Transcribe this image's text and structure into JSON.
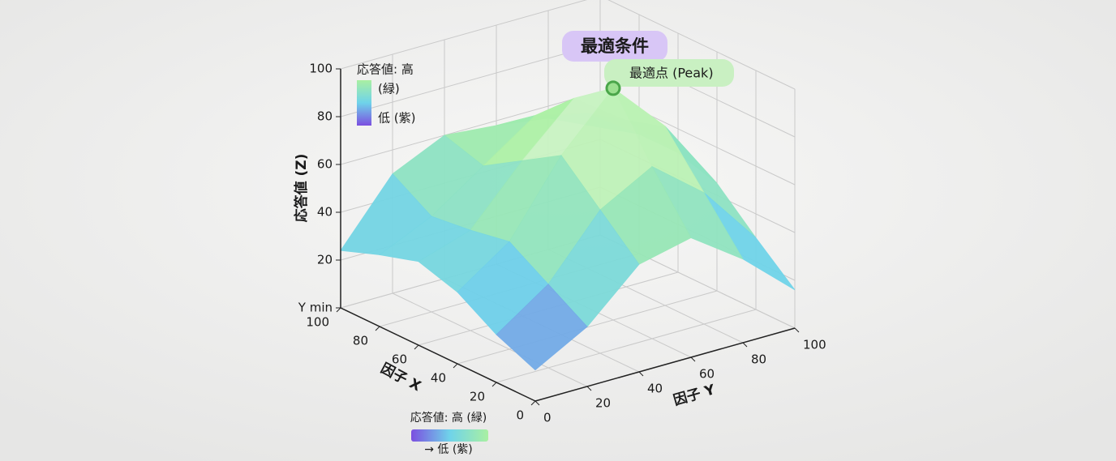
{
  "chart_data": {
    "type": "surface",
    "title": "最適条件",
    "annotation": "最適点 (Peak)",
    "peak": {
      "x": 40,
      "y": 60,
      "z": 97
    },
    "xlabel": "因子 X",
    "ylabel": "因子 Y",
    "zlabel": "応答値 (Z)",
    "x": [
      0,
      20,
      40,
      60,
      80,
      100
    ],
    "y": [
      0,
      20,
      40,
      60,
      80,
      100
    ],
    "z": [
      [
        13,
        25,
        45,
        50,
        35,
        16
      ],
      [
        20,
        35,
        60,
        72,
        55,
        30
      ],
      [
        30,
        45,
        75,
        97,
        75,
        45
      ],
      [
        35,
        42,
        65,
        85,
        70,
        50
      ],
      [
        30,
        40,
        55,
        70,
        65,
        50
      ],
      [
        24,
        50,
        60,
        58,
        55,
        45
      ]
    ],
    "xlim": [
      0,
      100
    ],
    "ylim": [
      0,
      100
    ],
    "zlim": [
      0,
      100
    ],
    "xticks": [
      0,
      20,
      40,
      60,
      80,
      100
    ],
    "yticks": [
      0,
      20,
      40,
      60,
      80,
      100
    ],
    "zticks": [
      {
        "value": 0,
        "label": "Y min"
      },
      20,
      40,
      60,
      80,
      100
    ],
    "colors": [
      "#7b4fe0",
      "#6fd3ea",
      "#a9f0a2",
      "#f6f8f2"
    ],
    "grid": true,
    "legend": {
      "title": "応答値: 高",
      "high": "(緑)",
      "low": "低 (紫)"
    },
    "legend_bottom": {
      "high": "応答値: 高 (緑)",
      "low": "→ 低 (紫)"
    }
  }
}
